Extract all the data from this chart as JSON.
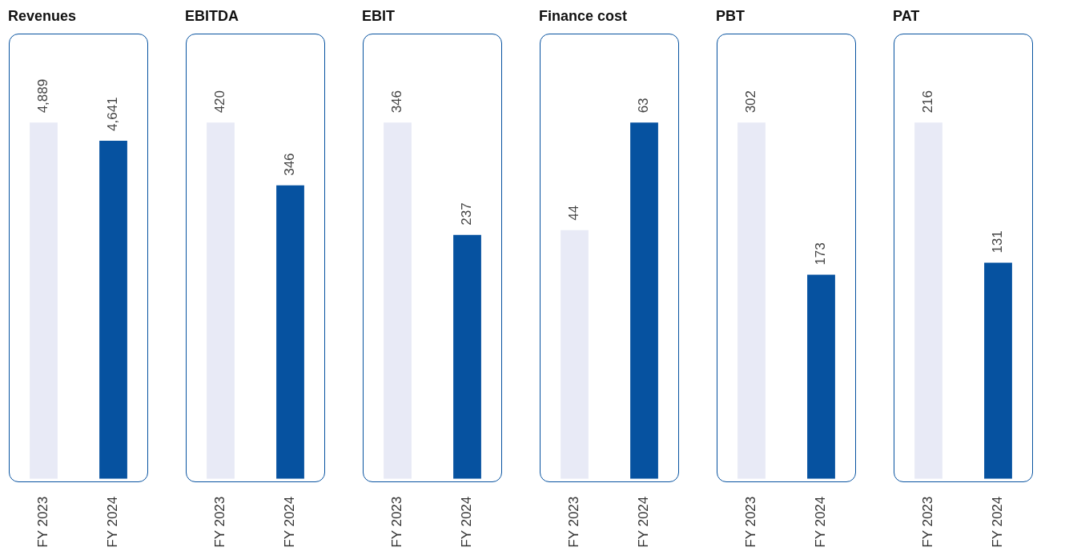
{
  "chart_data": [
    {
      "type": "bar",
      "title": "Revenues",
      "categories": [
        "FY 2023",
        "FY 2024"
      ],
      "values": [
        4889,
        4641
      ],
      "colors": [
        "#e8eaf6",
        "#0652a0"
      ],
      "value_labels": [
        "4,889",
        "4,641"
      ]
    },
    {
      "type": "bar",
      "title": "EBITDA",
      "categories": [
        "FY 2023",
        "FY 2024"
      ],
      "values": [
        420,
        346
      ],
      "colors": [
        "#e8eaf6",
        "#0652a0"
      ],
      "value_labels": [
        "420",
        "346"
      ]
    },
    {
      "type": "bar",
      "title": "EBIT",
      "categories": [
        "FY 2023",
        "FY 2024"
      ],
      "values": [
        346,
        237
      ],
      "colors": [
        "#e8eaf6",
        "#0652a0"
      ],
      "value_labels": [
        "346",
        "237"
      ]
    },
    {
      "type": "bar",
      "title": "Finance cost",
      "categories": [
        "FY 2023",
        "FY 2024"
      ],
      "values": [
        44,
        63
      ],
      "colors": [
        "#e8eaf6",
        "#0652a0"
      ],
      "value_labels": [
        "44",
        "63"
      ]
    },
    {
      "type": "bar",
      "title": "PBT",
      "categories": [
        "FY 2023",
        "FY 2024"
      ],
      "values": [
        302,
        173
      ],
      "colors": [
        "#e8eaf6",
        "#0652a0"
      ],
      "value_labels": [
        "302",
        "173"
      ]
    },
    {
      "type": "bar",
      "title": "PAT",
      "categories": [
        "FY 2023",
        "FY 2024"
      ],
      "values": [
        216,
        131
      ],
      "colors": [
        "#e8eaf6",
        "#0652a0"
      ],
      "value_labels": [
        "216",
        "131"
      ]
    }
  ]
}
